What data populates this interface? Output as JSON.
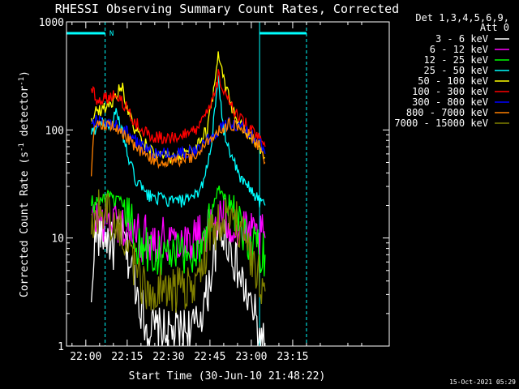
{
  "chart_data": {
    "type": "line",
    "title": "RHESSI Observing Summary Count Rates, Corrected",
    "xlabel": "Start Time (30-Jun-10 21:48:22)",
    "ylabel": "Corrected Count Rate (s-1 detector-1)",
    "ylabel_main": "Corrected Count Rate (s",
    "ylabel_sup1": "-1",
    "ylabel_mid": " detector",
    "ylabel_sup2": "-1",
    "ylabel_end": ")",
    "yscale": "log",
    "ylim": [
      1,
      1000
    ],
    "xlim_min": [
      -7,
      110
    ],
    "x_ticks": [
      {
        "v": 0,
        "label": "22:00"
      },
      {
        "v": 15,
        "label": "22:15"
      },
      {
        "v": 30,
        "label": "22:30"
      },
      {
        "v": 45,
        "label": "22:45"
      },
      {
        "v": 60,
        "label": "23:00"
      },
      {
        "v": 75,
        "label": "23:15"
      }
    ],
    "y_ticks": [
      {
        "v": 1,
        "label": "1"
      },
      {
        "v": 10,
        "label": "10"
      },
      {
        "v": 100,
        "label": "100"
      },
      {
        "v": 1000,
        "label": "1000"
      }
    ],
    "detectors_label": "Det 1,3,4,5,6,9,",
    "attenuator_label": "Att 0",
    "night_marker_label": "N",
    "timestamp": "15-Oct-2021 05:29",
    "markers": {
      "cyan_bars": [
        {
          "start": -7,
          "end": 7
        },
        {
          "start": 63,
          "end": 80
        }
      ],
      "cyan_dashed": [
        7,
        80
      ],
      "cyan_solid": [
        63
      ],
      "color": "#00ffff"
    },
    "series": [
      {
        "name": "3 - 6 keV",
        "color": "#ffffff",
        "values": [
          [
            2,
            2
          ],
          [
            3,
            10
          ],
          [
            7,
            11
          ],
          [
            10,
            8
          ],
          [
            13,
            12
          ],
          [
            15,
            7
          ],
          [
            17,
            5
          ],
          [
            19,
            3
          ],
          [
            22,
            1.5
          ],
          [
            30,
            1.3
          ],
          [
            40,
            1.5
          ],
          [
            44,
            3
          ],
          [
            47,
            8
          ],
          [
            49,
            12
          ],
          [
            52,
            9
          ],
          [
            55,
            5
          ],
          [
            58,
            3
          ],
          [
            61,
            2
          ],
          [
            63,
            1.2
          ],
          [
            65,
            1
          ]
        ]
      },
      {
        "name": "6 - 12 keV",
        "color": "#ff00ff",
        "values": [
          [
            2,
            14
          ],
          [
            4,
            15
          ],
          [
            8,
            15
          ],
          [
            12,
            14
          ],
          [
            14,
            13
          ],
          [
            17,
            11
          ],
          [
            20,
            10
          ],
          [
            30,
            10
          ],
          [
            40,
            10
          ],
          [
            46,
            13
          ],
          [
            49,
            16
          ],
          [
            52,
            14
          ],
          [
            55,
            12
          ],
          [
            58,
            11
          ],
          [
            61,
            10
          ],
          [
            65,
            10
          ]
        ]
      },
      {
        "name": "12 - 25 keV",
        "color": "#00ff00",
        "values": [
          [
            2,
            18
          ],
          [
            4,
            22
          ],
          [
            8,
            24
          ],
          [
            11,
            22
          ],
          [
            14,
            20
          ],
          [
            16,
            15
          ],
          [
            18,
            10
          ],
          [
            20,
            8
          ],
          [
            30,
            7
          ],
          [
            40,
            7
          ],
          [
            44,
            12
          ],
          [
            46,
            20
          ],
          [
            48,
            30
          ],
          [
            50,
            24
          ],
          [
            53,
            16
          ],
          [
            56,
            12
          ],
          [
            60,
            9
          ],
          [
            63,
            8
          ],
          [
            65,
            7
          ]
        ]
      },
      {
        "name": "25 - 50 keV",
        "color": "#00ffff",
        "values": [
          [
            2,
            90
          ],
          [
            4,
            110
          ],
          [
            7,
            120
          ],
          [
            9,
            110
          ],
          [
            11,
            140
          ],
          [
            13,
            100
          ],
          [
            15,
            60
          ],
          [
            18,
            35
          ],
          [
            22,
            25
          ],
          [
            30,
            22
          ],
          [
            38,
            22
          ],
          [
            42,
            30
          ],
          [
            45,
            60
          ],
          [
            48,
            280
          ],
          [
            50,
            100
          ],
          [
            53,
            55
          ],
          [
            56,
            35
          ],
          [
            60,
            28
          ],
          [
            63,
            22
          ],
          [
            65,
            20
          ]
        ]
      },
      {
        "name": "50 - 100 keV",
        "color": "#ffff00",
        "values": [
          [
            2,
            130
          ],
          [
            4,
            150
          ],
          [
            7,
            160
          ],
          [
            10,
            190
          ],
          [
            13,
            260
          ],
          [
            15,
            160
          ],
          [
            17,
            110
          ],
          [
            20,
            80
          ],
          [
            25,
            60
          ],
          [
            30,
            55
          ],
          [
            35,
            58
          ],
          [
            40,
            70
          ],
          [
            44,
            100
          ],
          [
            46,
            200
          ],
          [
            48,
            550
          ],
          [
            50,
            300
          ],
          [
            53,
            150
          ],
          [
            56,
            110
          ],
          [
            60,
            80
          ],
          [
            63,
            65
          ],
          [
            65,
            55
          ]
        ]
      },
      {
        "name": "100 - 300 keV",
        "color": "#ff0000",
        "values": [
          [
            2,
            250
          ],
          [
            4,
            190
          ],
          [
            7,
            200
          ],
          [
            10,
            210
          ],
          [
            13,
            190
          ],
          [
            16,
            140
          ],
          [
            20,
            100
          ],
          [
            25,
            85
          ],
          [
            30,
            85
          ],
          [
            35,
            88
          ],
          [
            40,
            100
          ],
          [
            44,
            140
          ],
          [
            47,
            220
          ],
          [
            48,
            320
          ],
          [
            50,
            220
          ],
          [
            53,
            160
          ],
          [
            57,
            120
          ],
          [
            60,
            100
          ],
          [
            63,
            80
          ],
          [
            65,
            70
          ]
        ]
      },
      {
        "name": "300 - 800 keV",
        "color": "#0000ff",
        "values": [
          [
            2,
            120
          ],
          [
            5,
            120
          ],
          [
            8,
            115
          ],
          [
            11,
            110
          ],
          [
            14,
            100
          ],
          [
            17,
            85
          ],
          [
            20,
            70
          ],
          [
            25,
            60
          ],
          [
            30,
            60
          ],
          [
            35,
            60
          ],
          [
            40,
            65
          ],
          [
            44,
            80
          ],
          [
            48,
            100
          ],
          [
            52,
            115
          ],
          [
            56,
            110
          ],
          [
            60,
            90
          ],
          [
            63,
            75
          ],
          [
            65,
            60
          ]
        ]
      },
      {
        "name": "800 - 7000 keV",
        "color": "#ff8000",
        "values": [
          [
            2,
            40
          ],
          [
            3,
            110
          ],
          [
            6,
            115
          ],
          [
            9,
            110
          ],
          [
            12,
            100
          ],
          [
            15,
            85
          ],
          [
            18,
            68
          ],
          [
            21,
            58
          ],
          [
            25,
            52
          ],
          [
            30,
            50
          ],
          [
            35,
            52
          ],
          [
            40,
            58
          ],
          [
            44,
            75
          ],
          [
            48,
            100
          ],
          [
            52,
            112
          ],
          [
            56,
            105
          ],
          [
            60,
            85
          ],
          [
            63,
            70
          ],
          [
            65,
            50
          ]
        ]
      },
      {
        "name": "7000 - 15000 keV",
        "color": "#808000",
        "values": [
          [
            2,
            15
          ],
          [
            4,
            17
          ],
          [
            7,
            17
          ],
          [
            10,
            15
          ],
          [
            13,
            12
          ],
          [
            15,
            9
          ],
          [
            17,
            6
          ],
          [
            19,
            4.5
          ],
          [
            21,
            3.5
          ],
          [
            30,
            3.2
          ],
          [
            35,
            3.3
          ],
          [
            40,
            4
          ],
          [
            43,
            7
          ],
          [
            46,
            12
          ],
          [
            49,
            14
          ],
          [
            52,
            16
          ],
          [
            55,
            13
          ],
          [
            58,
            9
          ],
          [
            61,
            6
          ],
          [
            63,
            4
          ],
          [
            65,
            3.2
          ]
        ]
      }
    ]
  }
}
